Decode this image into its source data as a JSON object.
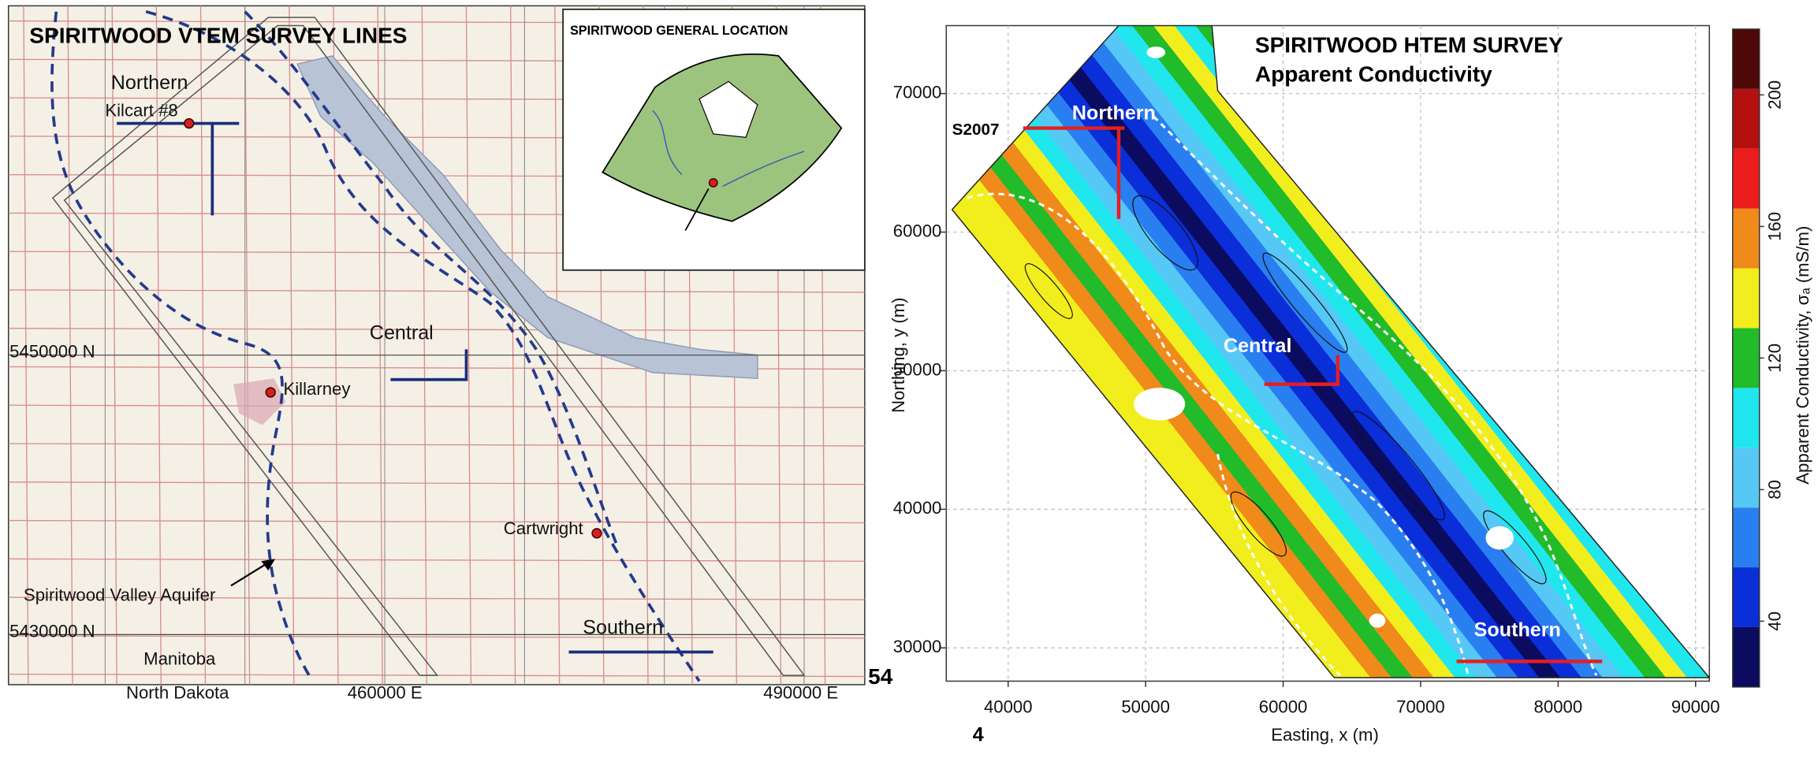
{
  "left_map": {
    "title": "SPIRITWOOD VTEM SURVEY LINES",
    "inset_title": "SPIRITWOOD GENERAL LOCATION",
    "labels": {
      "northern": "Northern",
      "kilcart": "Kilcart #8",
      "central": "Central",
      "northing_upper": "5450000 N",
      "killarney": "Killarney",
      "cartwright": "Cartwright",
      "aquifer": "Spiritwood Valley Aquifer",
      "northing_lower": "5430000 N",
      "southern": "Southern",
      "manitoba": "Manitoba",
      "north_dakota": "North Dakota",
      "easting_left": "460000 E",
      "easting_right": "490000 E"
    }
  },
  "right_map": {
    "title": "SPIRITWOOD HTEM SURVEY",
    "subtitle": "Apparent Conductivity",
    "line_labels": {
      "s2007": "S2007",
      "northern": "Northern",
      "central": "Central",
      "southern": "Southern"
    },
    "grid": true,
    "x_axis": {
      "label": "Easting, x (m)",
      "lim": [
        35500,
        91000
      ],
      "ticks": [
        40000,
        50000,
        60000,
        70000,
        80000,
        90000
      ],
      "prefix": "4"
    },
    "y_axis": {
      "label": "Northing, y (m)",
      "lim": [
        27600,
        74900
      ],
      "ticks": [
        30000,
        40000,
        50000,
        60000,
        70000
      ],
      "prefix": "54"
    },
    "colorbar": {
      "label": "Apparent Conductivity, σₐ (mS/m)",
      "lim": [
        20,
        220
      ],
      "ticks": [
        40,
        80,
        120,
        160,
        200
      ],
      "colors": [
        "#0b0b60",
        "#0a2ed8",
        "#2a7ff0",
        "#56c8f5",
        "#20e6ee",
        "#22bb2a",
        "#f2ee1e",
        "#f08a1a",
        "#ec1c1c",
        "#b41010",
        "#4e0808"
      ]
    }
  }
}
